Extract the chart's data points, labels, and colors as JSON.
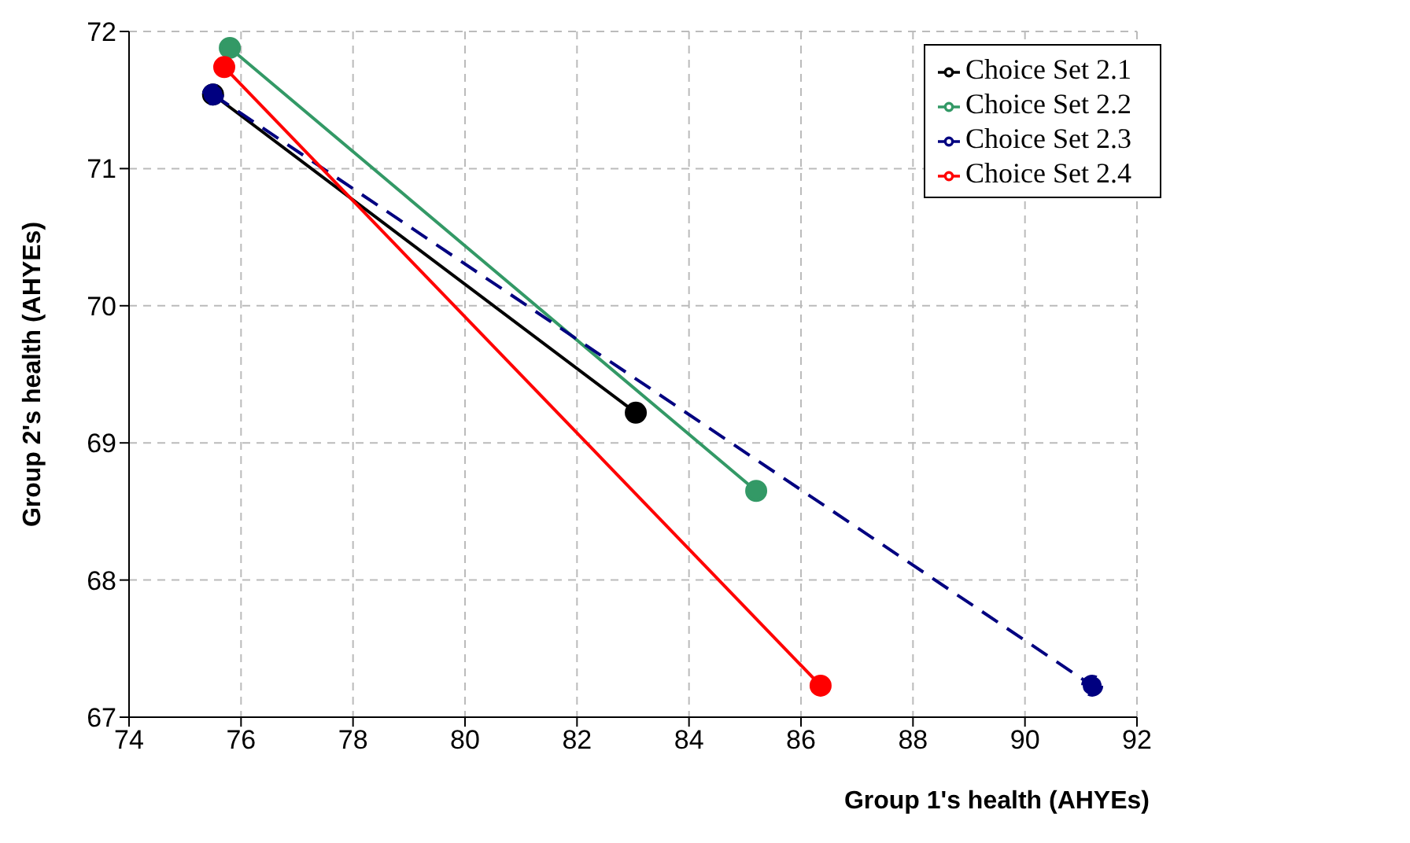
{
  "chart_data": {
    "type": "line",
    "xlabel": "Group 1's health (AHYEs)",
    "ylabel": "Group 2's health (AHYEs)",
    "xlim": [
      74,
      92
    ],
    "xticks": [
      74,
      76,
      78,
      80,
      82,
      84,
      86,
      88,
      90,
      92
    ],
    "ylim": [
      67,
      72
    ],
    "yticks": [
      67,
      68,
      69,
      70,
      71,
      72
    ],
    "grid": true,
    "legend": "top right",
    "marker": "circle",
    "series": [
      {
        "name": "Choice Set 2.1",
        "color": "#000000",
        "x": [
          75.5,
          83.05
        ],
        "values": [
          71.54,
          69.22
        ]
      },
      {
        "name": "Choice Set 2.2",
        "color": "#339966",
        "x": [
          75.8,
          85.2
        ],
        "values": [
          71.88,
          68.65
        ]
      },
      {
        "name": "Choice Set 2.3",
        "color": "#000080",
        "x": [
          75.5,
          91.2
        ],
        "values": [
          71.54,
          67.23
        ],
        "line_style": "dashed"
      },
      {
        "name": "Choice Set 2.4",
        "color": "#ff0000",
        "x": [
          75.7,
          86.35
        ],
        "values": [
          71.74,
          67.23
        ]
      }
    ]
  }
}
